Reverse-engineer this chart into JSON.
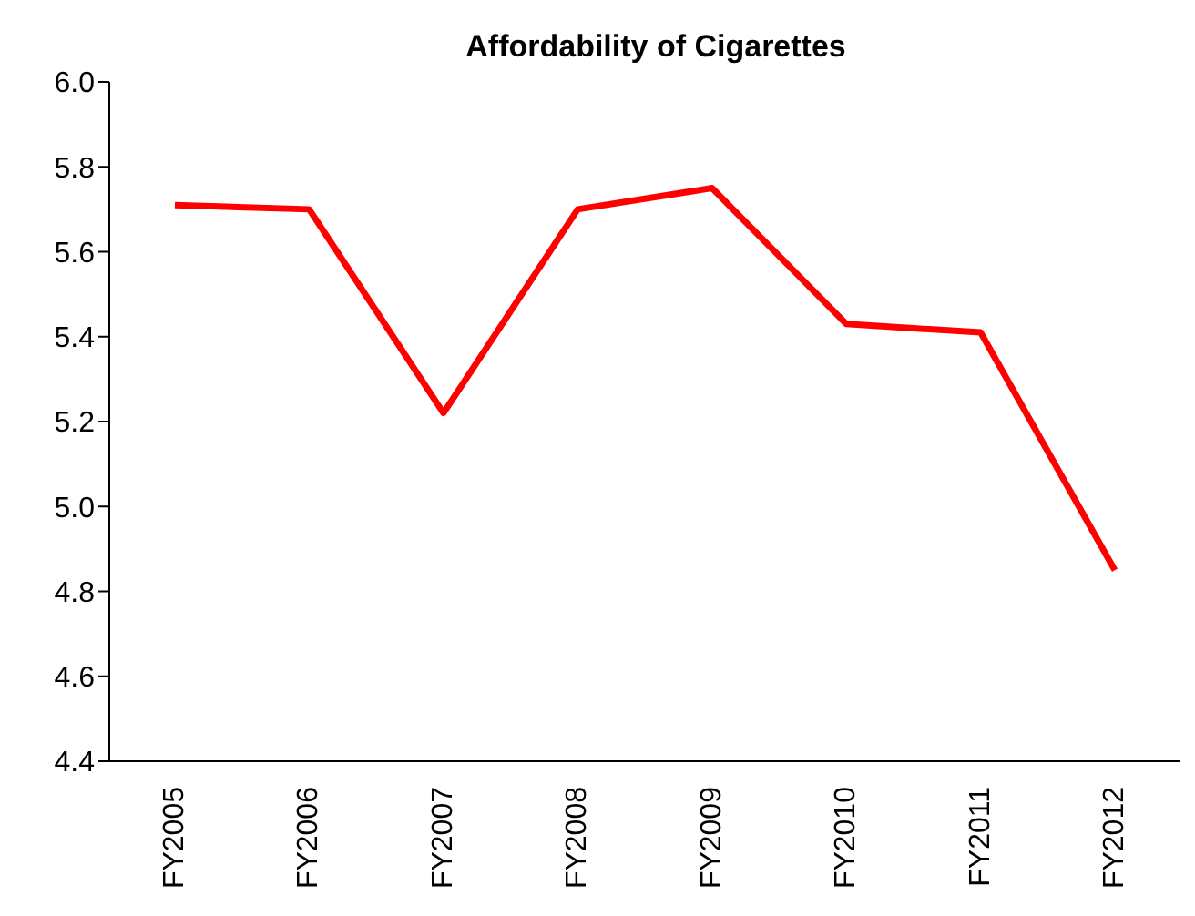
{
  "chart_data": {
    "type": "line",
    "title": "Affordability of Cigarettes",
    "categories": [
      "FY2005",
      "FY2006",
      "FY2007",
      "FY2008",
      "FY2009",
      "FY2010",
      "FY2011",
      "FY2012"
    ],
    "series": [
      {
        "color": "#ff0000",
        "values": [
          5.71,
          5.7,
          5.22,
          5.7,
          5.75,
          5.43,
          5.41,
          4.85
        ]
      }
    ],
    "ylim": [
      4.4,
      6.0
    ],
    "yticks": [
      4.4,
      4.6,
      4.8,
      {
        "value": 5,
        "label": "5.0"
      },
      5.2,
      5.4,
      5.6,
      5.8,
      {
        "value": 6,
        "label": "6.0"
      }
    ],
    "grid": false,
    "legend": false,
    "marker": "none",
    "line_style": "solid"
  }
}
